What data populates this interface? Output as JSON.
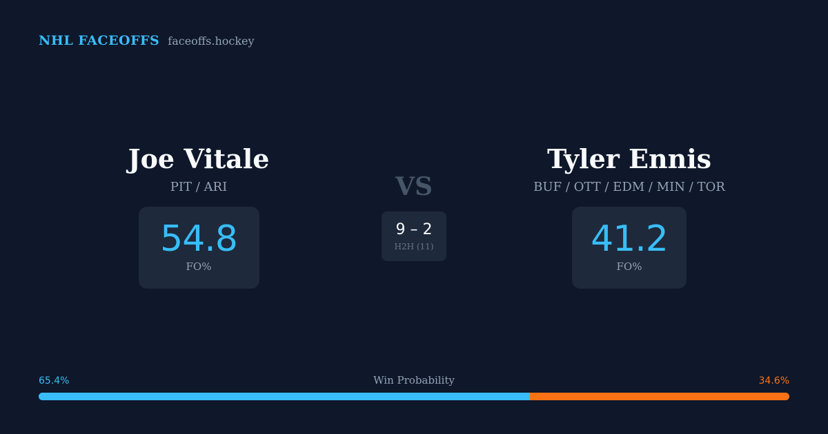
{
  "brand": {
    "name": "NHL FACEOFFS",
    "url": "faceoffs.hockey"
  },
  "player_left": {
    "name": "Joe Vitale",
    "teams": "PIT / ARI",
    "fo_pct": "54.8",
    "fo_label": "FO%"
  },
  "vs": "VS",
  "h2h": {
    "score": "9 – 2",
    "label": "H2H (11)"
  },
  "player_right": {
    "name": "Tyler Ennis",
    "teams": "BUF / OTT / EDM / MIN / TOR",
    "fo_pct": "41.2",
    "fo_label": "FO%"
  },
  "win_probability": {
    "title": "Win Probability",
    "left_label": "65.4%",
    "right_label": "34.6%",
    "left_fraction": 0.654
  },
  "colors": {
    "accent_blue": "#38bdf8",
    "accent_orange": "#f97316",
    "background": "#0f172a",
    "card": "#1e293b"
  }
}
